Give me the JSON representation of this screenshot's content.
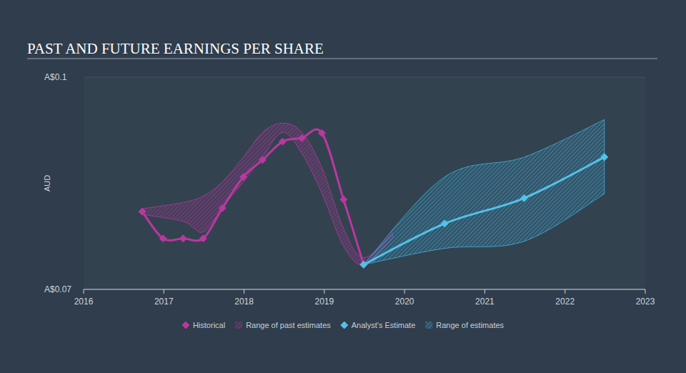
{
  "chart_data": {
    "type": "line",
    "title": "PAST AND FUTURE EARNINGS PER SHARE",
    "y_label": "AUD",
    "xlim": [
      2016,
      2023
    ],
    "xticks": [
      2016,
      2017,
      2018,
      2019,
      2020,
      2021,
      2022,
      2023
    ],
    "ylim": [
      0.07,
      0.1
    ],
    "yticks": [
      {
        "value": 0.07,
        "label": "A$0.07"
      },
      {
        "value": 0.1,
        "label": "A$0.1"
      }
    ],
    "grid": true,
    "legend": "bottom",
    "series": [
      {
        "name": "Historical",
        "type": "line",
        "color": "#b9389f",
        "marker": "diamond",
        "x": [
          2016.73,
          2016.99,
          2017.24,
          2017.49,
          2017.73,
          2017.99,
          2018.23,
          2018.48,
          2018.72,
          2018.97,
          2019.24,
          2019.49
        ],
        "values": [
          0.081,
          0.0772,
          0.0772,
          0.0772,
          0.0815,
          0.0859,
          0.0883,
          0.0909,
          0.0914,
          0.0921,
          0.0827,
          0.0735
        ]
      },
      {
        "name": "Range of past estimates",
        "type": "area",
        "color": "#a33a93",
        "x": [
          2016.73,
          2017.24,
          2017.49,
          2017.73,
          2017.99,
          2018.23,
          2018.48,
          2018.72,
          2018.97,
          2019.24,
          2019.49,
          2019.85
        ],
        "low": [
          0.0806,
          0.0796,
          0.0781,
          0.0816,
          0.0852,
          0.0887,
          0.0922,
          0.0892,
          0.0836,
          0.0761,
          0.0735,
          0.0772
        ],
        "high": [
          0.0814,
          0.0823,
          0.0832,
          0.0852,
          0.0887,
          0.0922,
          0.0935,
          0.0922,
          0.0872,
          0.0786,
          0.0745,
          0.078
        ]
      },
      {
        "name": "Analyst's Estimate",
        "type": "line",
        "color": "#52c2ea",
        "marker": "diamond",
        "x": [
          2019.49,
          2020.5,
          2021.49,
          2022.49
        ],
        "values": [
          0.0735,
          0.0793,
          0.0829,
          0.0887
        ]
      },
      {
        "name": "Range of estimates",
        "type": "area",
        "color": "#3fa6d3",
        "x": [
          2019.49,
          2020.5,
          2021.49,
          2022.49
        ],
        "low": [
          0.0735,
          0.0758,
          0.0768,
          0.0835
        ],
        "high": [
          0.0735,
          0.0859,
          0.0887,
          0.094
        ]
      }
    ]
  }
}
